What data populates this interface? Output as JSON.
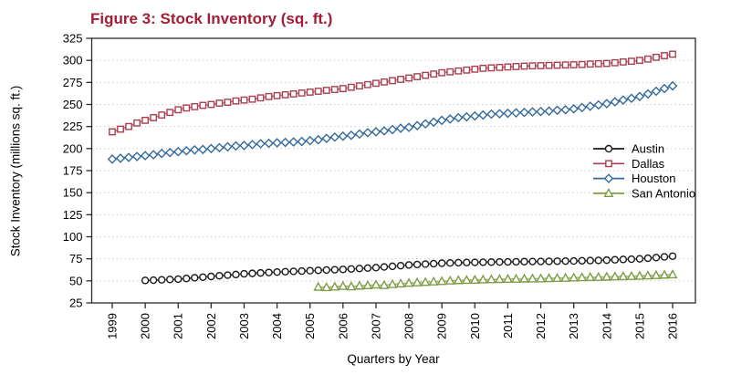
{
  "figure": {
    "title": "Figure 3: Stock Inventory (sq. ft.)",
    "title_color": "#A21D35"
  },
  "chart_data": {
    "type": "line",
    "title": "Figure 3: Stock Inventory (sq. ft.)",
    "xlabel": "Quarters by Year",
    "ylabel": "Stock Inventory (millions sq. ft.)",
    "x_frequency": "quarterly",
    "x_tick_labels": [
      "1999",
      "2000",
      "2001",
      "2002",
      "2003",
      "2004",
      "2005",
      "2006",
      "2007",
      "2008",
      "2009",
      "2010",
      "2011",
      "2012",
      "2013",
      "2014",
      "2015",
      "2016"
    ],
    "ylim": [
      25,
      325
    ],
    "y_ticks": [
      25,
      50,
      75,
      100,
      125,
      150,
      175,
      200,
      225,
      250,
      275,
      300,
      325
    ],
    "grid": "horizontal-dotted",
    "legend_position": "inside-right",
    "axis_color": "#2B2B2B",
    "grid_color": "#C9C9C9",
    "series": [
      {
        "name": "Austin",
        "color": "#1A1A1A",
        "marker": "circle",
        "start": "2000Q1",
        "start_offset_years": 1.0,
        "values": [
          50.5,
          50.8,
          51.2,
          51.6,
          52,
          52.7,
          53.5,
          54.2,
          55,
          55.8,
          56.5,
          57.2,
          58,
          58.5,
          59,
          59.5,
          60,
          60.4,
          60.8,
          61.1,
          61.5,
          61.9,
          62.3,
          62.6,
          63,
          63.5,
          64,
          64.5,
          65,
          65.8,
          66.5,
          67.2,
          68,
          68.5,
          69,
          69.5,
          70,
          70.3,
          70.6,
          70.8,
          71,
          71.1,
          71.3,
          71.4,
          71.5,
          71.6,
          71.8,
          71.9,
          72,
          72.1,
          72.3,
          72.4,
          72.5,
          72.8,
          73,
          73.2,
          73.5,
          73.9,
          74.3,
          74.6,
          75,
          75.7,
          76.4,
          77.2,
          78
        ]
      },
      {
        "name": "Dallas",
        "color": "#A93F4F",
        "marker": "square",
        "start": "1999Q1",
        "start_offset_years": 0.0,
        "values": [
          219,
          222,
          225,
          229,
          232,
          235,
          238,
          241,
          244,
          246,
          247.5,
          249,
          250,
          251.5,
          252.5,
          254,
          255,
          256,
          257.5,
          259,
          260,
          261,
          262,
          263,
          264,
          265,
          266,
          267,
          268,
          269.5,
          271,
          272.5,
          274,
          275.5,
          277,
          278.5,
          280,
          281.5,
          283,
          284.5,
          286,
          287,
          288,
          289,
          290,
          291,
          291.5,
          292,
          292.5,
          293,
          293.5,
          293.8,
          294,
          294.3,
          294.5,
          294.8,
          295,
          295.3,
          295.8,
          296.2,
          296.5,
          297.3,
          298.2,
          299,
          300,
          301.5,
          303.5,
          305.3,
          307
        ]
      },
      {
        "name": "Houston",
        "color": "#366A9B",
        "marker": "diamond",
        "start": "1999Q1",
        "start_offset_years": 0.0,
        "values": [
          188,
          189,
          190,
          191,
          192,
          193,
          194.5,
          195.5,
          196.5,
          197.5,
          198.5,
          199,
          200,
          201,
          202,
          203,
          203.5,
          204.5,
          205.5,
          206,
          206.5,
          207,
          207.5,
          208,
          209,
          210,
          211.5,
          213,
          214,
          215,
          216.5,
          218,
          219,
          220,
          221.5,
          223,
          224,
          226,
          228,
          230,
          232,
          233.5,
          235,
          236,
          237,
          238,
          239,
          239.5,
          240,
          240.5,
          241,
          241.5,
          242,
          242.5,
          243.5,
          244,
          245,
          246.5,
          248,
          249.5,
          251,
          253,
          255,
          257,
          259,
          262,
          265,
          268,
          271
        ]
      },
      {
        "name": "San Antonio",
        "color": "#7E9D46",
        "marker": "triangle",
        "start": "2005Q2",
        "start_offset_years": 6.25,
        "values": [
          43,
          42.5,
          43.2,
          44,
          43.5,
          44.3,
          44.8,
          45.5,
          45,
          46,
          46.8,
          47.5,
          48,
          48.5,
          49,
          49.5,
          50,
          50.5,
          50.8,
          51,
          51.3,
          51.6,
          51.8,
          52,
          52.1,
          52.3,
          52.4,
          52.5,
          52.8,
          53,
          53.2,
          53.5,
          53.8,
          54,
          54.2,
          54.5,
          54.8,
          55,
          55.2,
          55.5,
          55.9,
          56.3,
          56.7,
          57
        ]
      }
    ],
    "legend": [
      "Austin",
      "Dallas",
      "Houston",
      "San Antonio"
    ]
  }
}
